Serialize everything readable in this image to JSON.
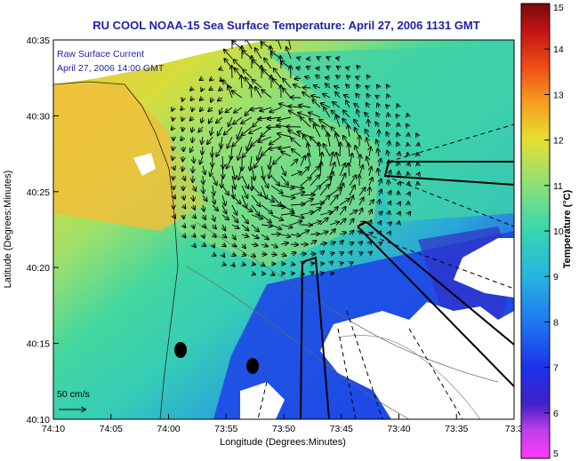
{
  "title": "RU COOL  NOAA-15 Sea Surface Temperature:  April 27, 2006 1131 GMT",
  "inset": {
    "line1": "Raw Surface Current",
    "line2": "April 27, 2006 14:00 GMT"
  },
  "axes": {
    "xlabel": "Longitude (Degrees:Minutes)",
    "ylabel": "Latitude (Degrees:Minutes)",
    "x_ticks": [
      "74:10",
      "74:05",
      "74:00",
      "73:55",
      "73:50",
      "73:45",
      "73:40",
      "73:35",
      "73:3"
    ],
    "y_ticks": [
      "40:35",
      "40:30",
      "40:25",
      "40:20",
      "40:15",
      "40:10"
    ]
  },
  "scale_bar": {
    "label": "50 cm/s"
  },
  "colorbar": {
    "label": "Temperature (°C)",
    "min": 5,
    "max": 15,
    "ticks": [
      "15",
      "14",
      "13",
      "12",
      "11",
      "10",
      "9",
      "8",
      "7",
      "6",
      "5"
    ]
  },
  "colors": {
    "title": "#1f1fa8",
    "land": "#ffffff",
    "warm": "#f2c23a",
    "mid": "#35d0a5",
    "cold": "#1c4fe6"
  }
}
